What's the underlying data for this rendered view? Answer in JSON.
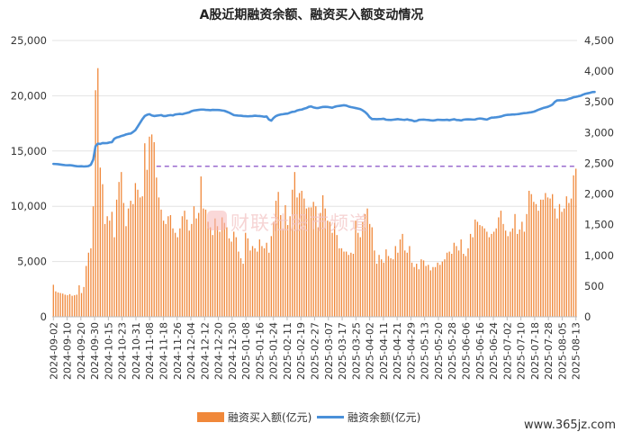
{
  "chart_data": {
    "type": "bar",
    "title": "A股近期融资余额、融资买入额变动情况",
    "xlabel": "",
    "ylabel": "",
    "y_left": {
      "ticks": [
        0,
        5000,
        10000,
        15000,
        20000,
        25000
      ],
      "tick_labels": [
        "0",
        "5,000",
        "10,000",
        "15,000",
        "20,000",
        "25,000"
      ],
      "ylim": [
        0,
        25000
      ]
    },
    "y_right": {
      "ticks": [
        0,
        500,
        1000,
        1500,
        2000,
        2500,
        3000,
        3500,
        4000,
        4500
      ],
      "tick_labels": [
        "0",
        "500",
        "1,000",
        "1,500",
        "2,000",
        "2,500",
        "3,000",
        "3,500",
        "4,000",
        "4,500"
      ],
      "ylim": [
        0,
        4500
      ]
    },
    "x_tick_labels": [
      "2024-09-02",
      "2024-09-10",
      "2024-09-20",
      "2024-09-30",
      "2024-10-15",
      "2024-10-23",
      "2024-10-31",
      "2024-11-08",
      "2024-11-18",
      "2024-11-26",
      "2024-12-04",
      "2024-12-12",
      "2024-12-20",
      "2024-12-30",
      "2025-01-08",
      "2025-01-16",
      "2025-01-24",
      "2025-02-11",
      "2025-02-19",
      "2025-02-27",
      "2025-03-07",
      "2025-03-17",
      "2025-03-25",
      "2025-04-02",
      "2025-04-11",
      "2025-04-21",
      "2025-04-29",
      "2025-05-13",
      "2025-05-20",
      "2025-05-28",
      "2025-06-06",
      "2025-06-16",
      "2025-06-24",
      "2025-07-02",
      "2025-07-10",
      "2025-07-18",
      "2025-07-28",
      "2025-08-05",
      "2025-08-13"
    ],
    "reference_line": {
      "value": 2450,
      "axis": "right",
      "style": "dashed",
      "color": "#7a3bbf"
    },
    "series": [
      {
        "name": "融资买入额(亿元)",
        "type": "bar",
        "axis": "left",
        "color": "#f0883a",
        "values": [
          2900,
          2300,
          2200,
          2150,
          2100,
          2000,
          1950,
          2050,
          1900,
          1950,
          2000,
          2850,
          2150,
          2700,
          4600,
          5800,
          6200,
          10000,
          20500,
          22500,
          13500,
          12000,
          8400,
          9100,
          8700,
          9500,
          7200,
          10600,
          12200,
          13100,
          10300,
          8200,
          9800,
          10500,
          10200,
          12100,
          11500,
          10800,
          10900,
          15700,
          13300,
          16300,
          16500,
          15800,
          12600,
          10800,
          9700,
          8700,
          8400,
          9100,
          9200,
          8000,
          7600,
          7200,
          8000,
          9100,
          9600,
          8800,
          7800,
          8400,
          10000,
          8900,
          9400,
          12700,
          9800,
          9700,
          8600,
          8100,
          7400,
          8900,
          8200,
          7700,
          9000,
          8500,
          8100,
          7100,
          6800,
          7700,
          7200,
          5900,
          5300,
          4800,
          7600,
          7100,
          6000,
          6400,
          6200,
          5900,
          7000,
          6400,
          6200,
          6700,
          5800,
          7300,
          8600,
          10500,
          11300,
          9200,
          8000,
          10100,
          8300,
          9100,
          11500,
          13100,
          10800,
          11200,
          11400,
          10700,
          9800,
          9900,
          9900,
          10400,
          10000,
          8100,
          9400,
          11000,
          9800,
          8700,
          8600,
          7600,
          8500,
          7400,
          6200,
          6200,
          5900,
          5900,
          5600,
          5800,
          5700,
          8700,
          7600,
          7200,
          8600,
          9300,
          9800,
          8400,
          8100,
          6000,
          4800,
          5600,
          5200,
          4900,
          6100,
          5500,
          5300,
          5200,
          6400,
          5800,
          7000,
          7500,
          6000,
          5800,
          6400,
          4900,
          4500,
          4800,
          4300,
          5200,
          5100,
          4600,
          4700,
          4200,
          4500,
          4500,
          4900,
          4700,
          5000,
          5200,
          5800,
          5900,
          5700,
          6700,
          6400,
          6000,
          7000,
          5700,
          5500,
          6200,
          7500,
          7200,
          8800,
          8600,
          8300,
          8200,
          8000,
          7700,
          7200,
          7500,
          7700,
          8000,
          9000,
          9600,
          8400,
          7800,
          7300,
          7700,
          8000,
          9300,
          7500,
          7900,
          8600,
          7700,
          9300,
          11400,
          11100,
          10400,
          10200,
          9600,
          10600,
          10600,
          11200,
          10800,
          10700,
          11100,
          9800,
          8900,
          10200,
          9500,
          9800,
          10900,
          10300,
          10700,
          12800,
          13400
        ]
      },
      {
        "name": "融资余额(亿元)",
        "type": "line",
        "axis": "right",
        "color": "#4a90d9",
        "values": [
          2490,
          2488,
          2485,
          2480,
          2475,
          2470,
          2468,
          2470,
          2465,
          2458,
          2452,
          2450,
          2452,
          2448,
          2450,
          2455,
          2478,
          2560,
          2780,
          2820,
          2815,
          2830,
          2828,
          2830,
          2840,
          2845,
          2900,
          2920,
          2930,
          2945,
          2955,
          2970,
          2980,
          2985,
          3010,
          3040,
          3100,
          3160,
          3220,
          3270,
          3290,
          3300,
          3280,
          3270,
          3275,
          3280,
          3285,
          3270,
          3270,
          3280,
          3285,
          3280,
          3295,
          3300,
          3305,
          3300,
          3310,
          3320,
          3330,
          3350,
          3360,
          3365,
          3370,
          3375,
          3375,
          3370,
          3368,
          3365,
          3370,
          3368,
          3368,
          3366,
          3360,
          3355,
          3340,
          3325,
          3305,
          3285,
          3280,
          3276,
          3275,
          3270,
          3268,
          3265,
          3268,
          3270,
          3275,
          3272,
          3270,
          3265,
          3258,
          3262,
          3212,
          3195,
          3240,
          3270,
          3285,
          3295,
          3300,
          3306,
          3310,
          3325,
          3338,
          3342,
          3360,
          3370,
          3375,
          3390,
          3400,
          3420,
          3426,
          3410,
          3402,
          3400,
          3410,
          3418,
          3420,
          3418,
          3412,
          3405,
          3420,
          3430,
          3435,
          3440,
          3445,
          3440,
          3425,
          3415,
          3408,
          3400,
          3392,
          3382,
          3362,
          3335,
          3300,
          3250,
          3220,
          3220,
          3218,
          3220,
          3222,
          3225,
          3210,
          3208,
          3205,
          3210,
          3215,
          3220,
          3214,
          3210,
          3208,
          3216,
          3205,
          3200,
          3185,
          3190,
          3208,
          3210,
          3212,
          3208,
          3205,
          3200,
          3196,
          3202,
          3210,
          3208,
          3206,
          3205,
          3209,
          3202,
          3210,
          3218,
          3206,
          3204,
          3198,
          3210,
          3215,
          3216,
          3215,
          3212,
          3213,
          3225,
          3230,
          3226,
          3218,
          3212,
          3230,
          3244,
          3246,
          3250,
          3255,
          3262,
          3275,
          3285,
          3290,
          3292,
          3295,
          3296,
          3300,
          3305,
          3312,
          3318,
          3320,
          3326,
          3332,
          3340,
          3355,
          3372,
          3386,
          3400,
          3410,
          3420,
          3436,
          3458,
          3500,
          3525,
          3526,
          3527,
          3528,
          3535,
          3550,
          3560,
          3576,
          3582,
          3592,
          3600,
          3618,
          3632,
          3640,
          3648,
          3660,
          3662
        ]
      }
    ],
    "legend": {
      "position": "bottom"
    },
    "grid": true
  },
  "watermark": {
    "text": "财联社股市频道"
  },
  "source_mark": {
    "text": "www.365jz.com"
  }
}
